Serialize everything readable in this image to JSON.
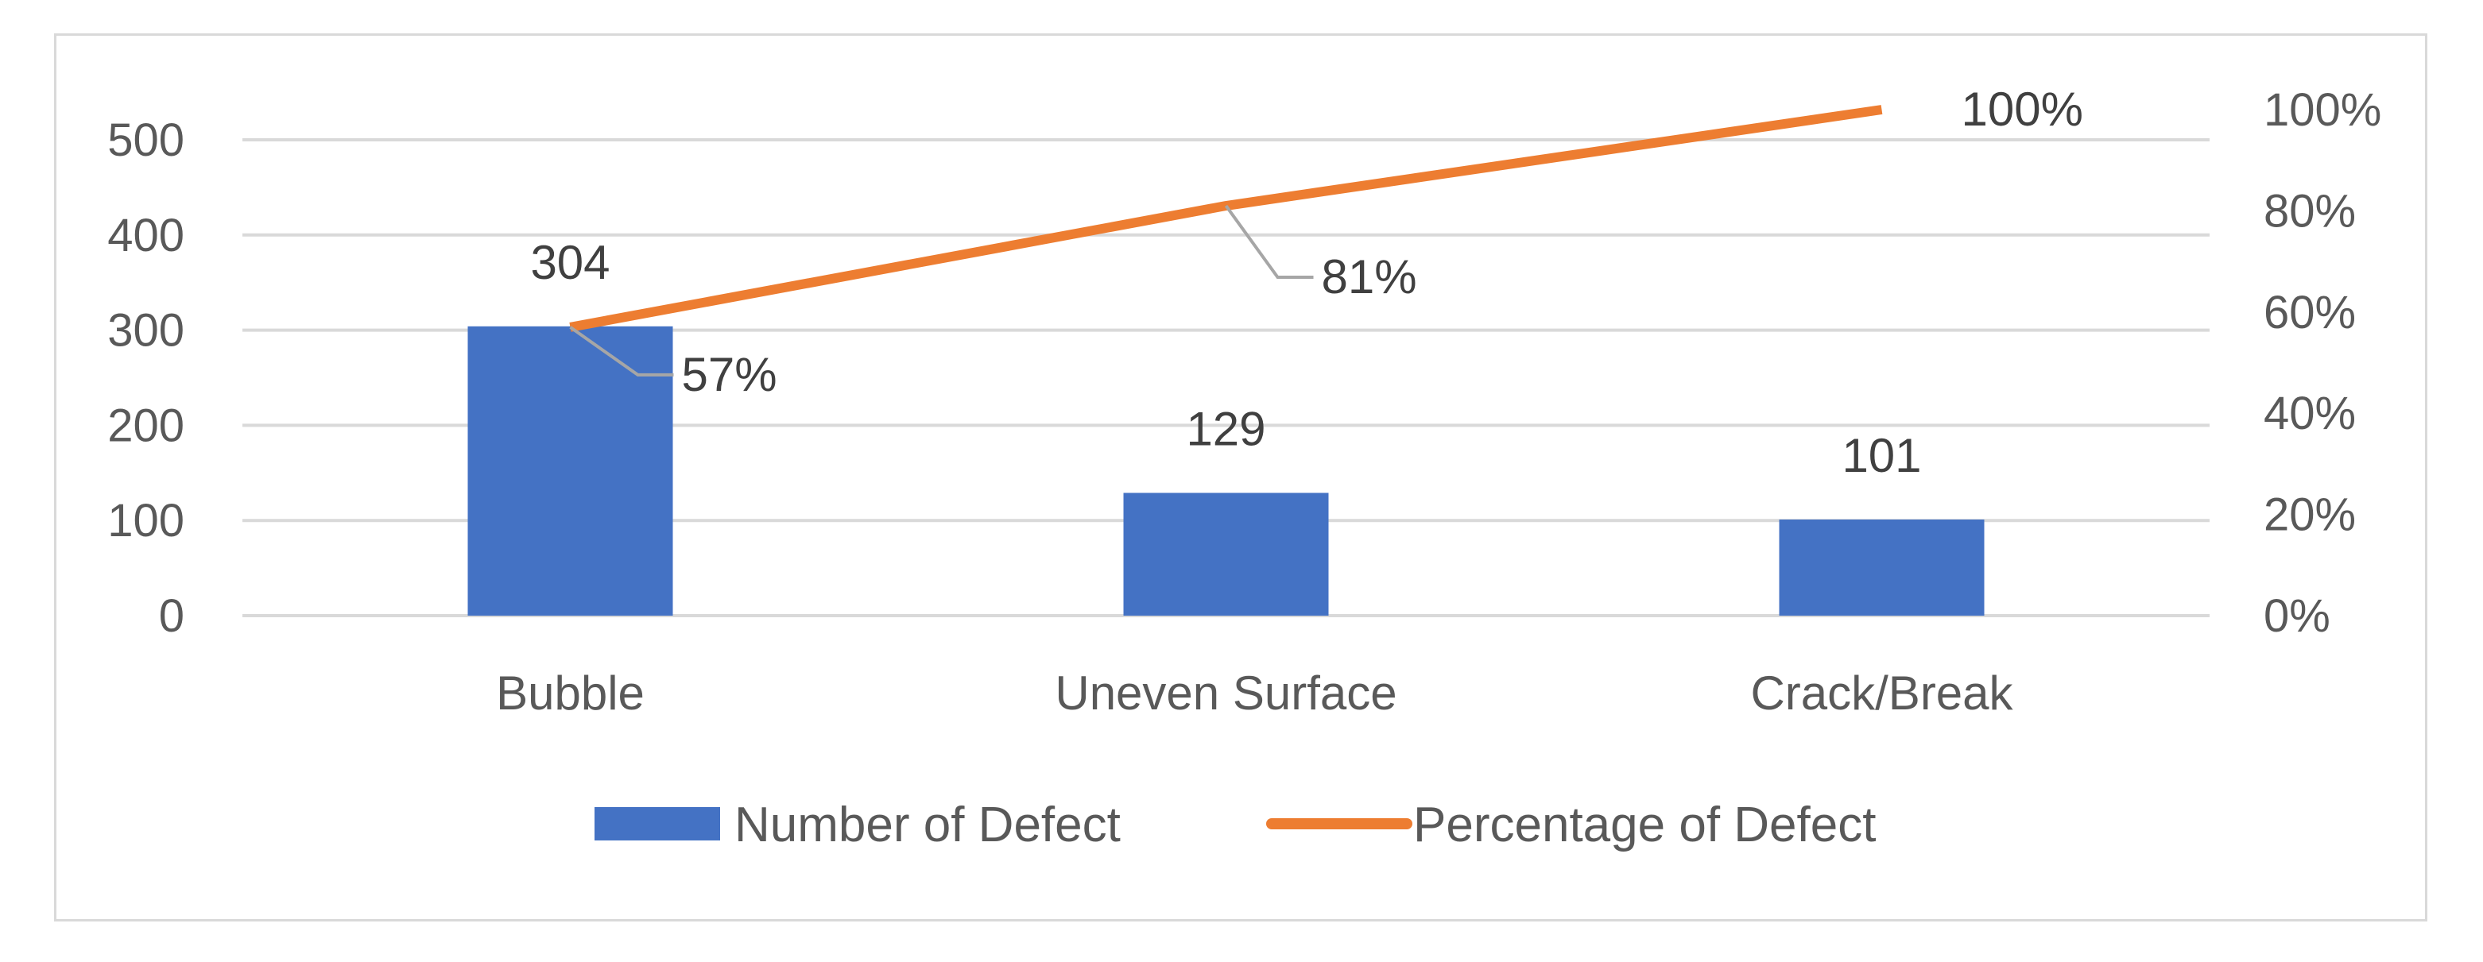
{
  "chart_data": {
    "type": "bar",
    "combo": "bar+line (pareto)",
    "categories": [
      "Bubble",
      "Uneven Surface",
      "Crack/Break"
    ],
    "series": [
      {
        "name": "Number of Defect",
        "type": "bar",
        "axis": "left",
        "values": [
          304,
          129,
          101
        ],
        "data_labels": [
          "304",
          "129",
          "101"
        ],
        "color": "#4472c4"
      },
      {
        "name": "Percentage of Defect",
        "type": "line",
        "axis": "right",
        "values": [
          57,
          81,
          100
        ],
        "data_labels": [
          "57%",
          "81%",
          "100%"
        ],
        "color": "#ed7d31"
      }
    ],
    "left_axis": {
      "min": 0,
      "max": 500,
      "step": 100,
      "ticks": [
        "0",
        "100",
        "200",
        "300",
        "400",
        "500"
      ]
    },
    "right_axis": {
      "min": 0,
      "max": 100,
      "step": 20,
      "ticks": [
        "0%",
        "20%",
        "40%",
        "60%",
        "80%",
        "100%"
      ]
    },
    "grid": true,
    "gridline_color": "#d9d9d9",
    "leader_line_color": "#a6a6a6",
    "text_color": "#595959",
    "legend_position": "bottom"
  }
}
